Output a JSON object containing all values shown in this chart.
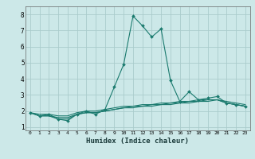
{
  "xlabel": "Humidex (Indice chaleur)",
  "bg_color": "#cce8e8",
  "grid_color": "#aacccc",
  "line_color": "#1a7a6e",
  "xlim": [
    -0.5,
    23.5
  ],
  "ylim": [
    0.8,
    8.5
  ],
  "xticks": [
    0,
    1,
    2,
    3,
    4,
    5,
    6,
    7,
    8,
    9,
    10,
    11,
    12,
    13,
    14,
    15,
    16,
    17,
    18,
    19,
    20,
    21,
    22,
    23
  ],
  "yticks": [
    1,
    2,
    3,
    4,
    5,
    6,
    7,
    8
  ],
  "series": [
    [
      1.9,
      1.7,
      1.8,
      1.5,
      1.4,
      1.8,
      2.0,
      1.8,
      2.1,
      3.5,
      4.9,
      7.9,
      7.3,
      6.6,
      7.1,
      3.9,
      2.6,
      3.2,
      2.7,
      2.8,
      2.9,
      2.5,
      2.4,
      2.3
    ],
    [
      1.9,
      1.7,
      1.7,
      1.5,
      1.5,
      1.8,
      1.9,
      1.9,
      2.0,
      2.1,
      2.2,
      2.2,
      2.3,
      2.3,
      2.4,
      2.4,
      2.5,
      2.5,
      2.6,
      2.6,
      2.7,
      2.5,
      2.4,
      2.3
    ],
    [
      1.9,
      1.7,
      1.7,
      1.6,
      1.6,
      1.8,
      1.9,
      1.9,
      2.0,
      2.1,
      2.2,
      2.3,
      2.3,
      2.4,
      2.4,
      2.5,
      2.5,
      2.6,
      2.6,
      2.7,
      2.7,
      2.5,
      2.4,
      2.3
    ],
    [
      1.9,
      1.8,
      1.8,
      1.7,
      1.7,
      1.9,
      2.0,
      2.0,
      2.1,
      2.2,
      2.3,
      2.3,
      2.4,
      2.4,
      2.5,
      2.5,
      2.6,
      2.6,
      2.7,
      2.7,
      2.7,
      2.6,
      2.5,
      2.4
    ]
  ]
}
